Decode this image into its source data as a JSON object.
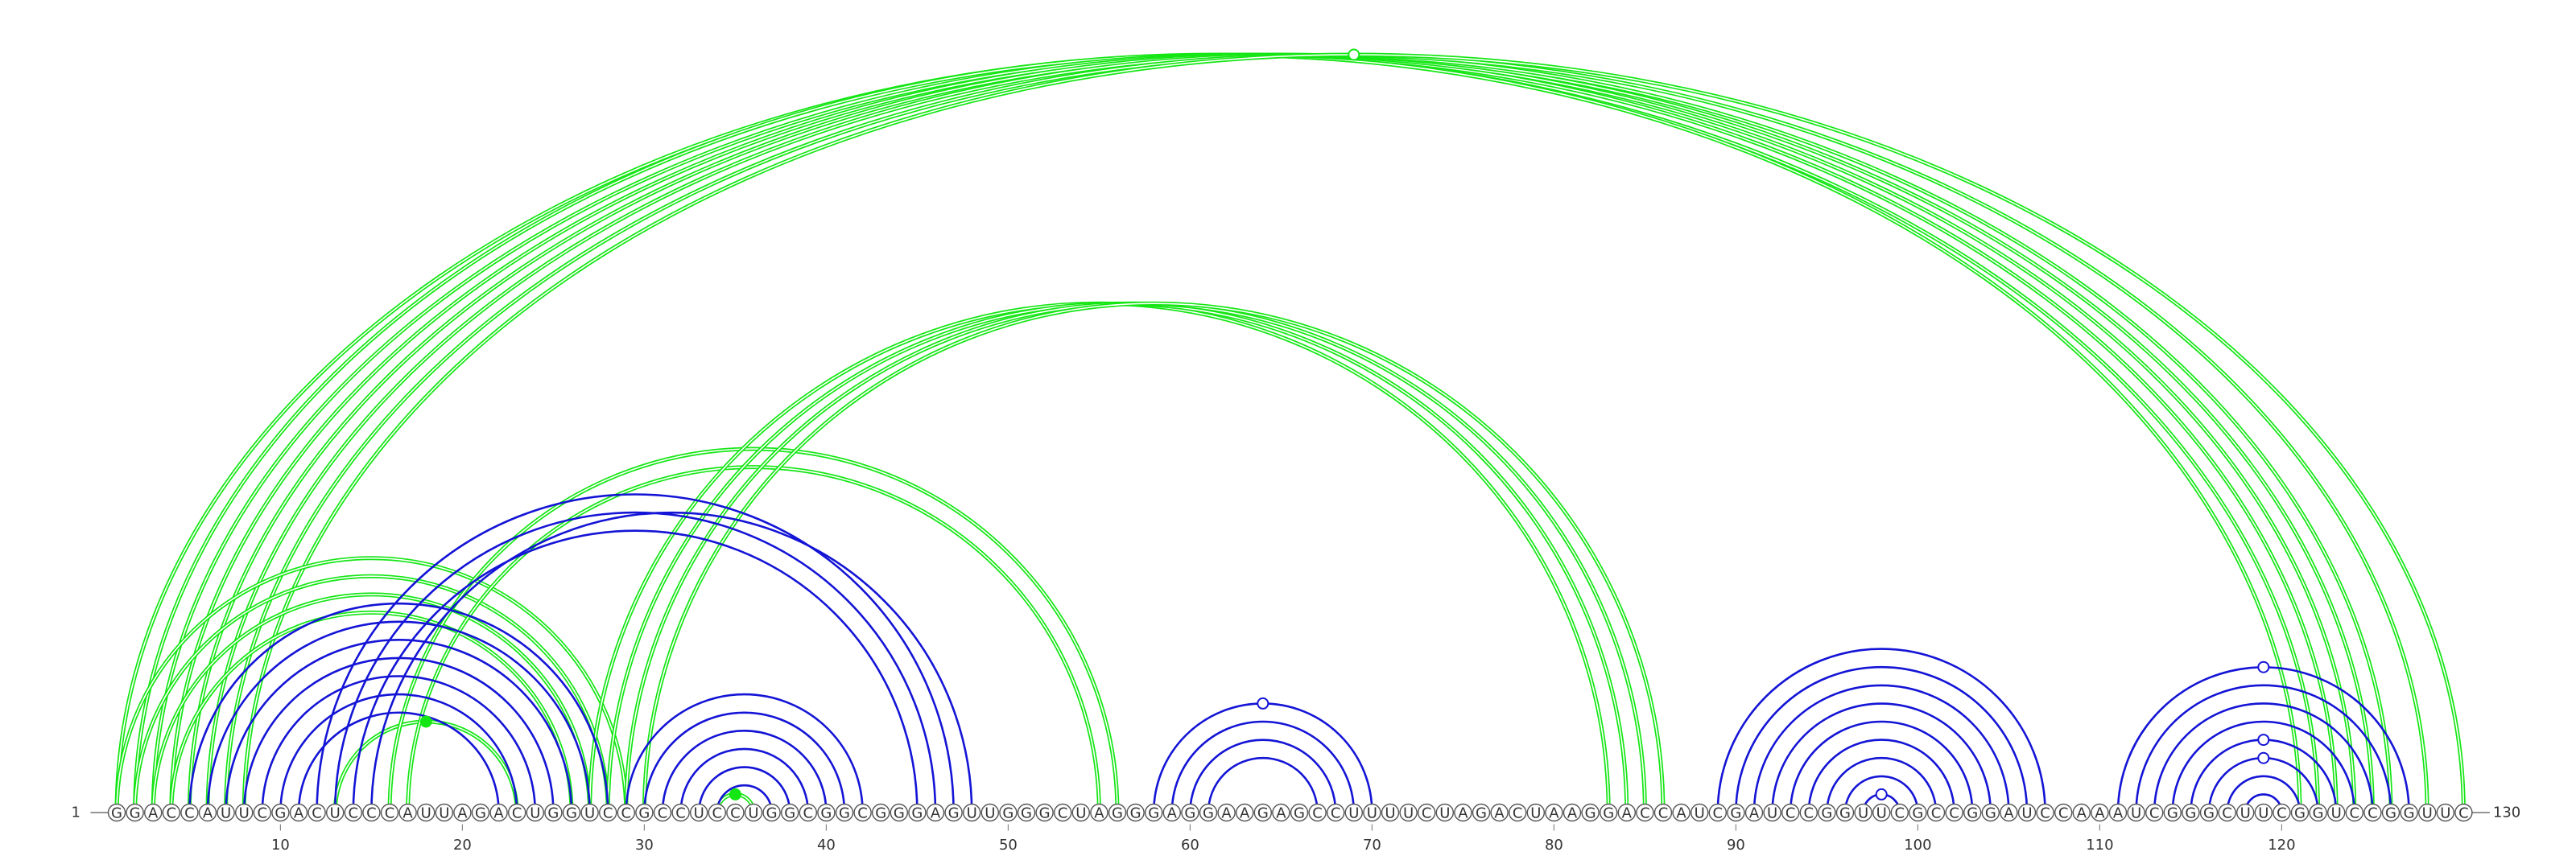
{
  "chart_data": {
    "type": "arc-diagram",
    "sequence": "GGACCAUUCGACUCCCAUUAGACUGGUCCGCCUCCUGGCGGCGGGAGUUGGGCUAGGGAGGAAGAGCCUUUUCUAGACUAAGGACCAUCGAUCCGGUUCGCCGGAUCCAAAUCGGGCUUCGGUCCGGUUC",
    "length": 130,
    "start_label": "1",
    "end_label": "130",
    "ticks": [
      10,
      20,
      30,
      40,
      50,
      60,
      70,
      80,
      90,
      100,
      110,
      120
    ],
    "colors": {
      "blue": "#1414d6",
      "green": "#14e614",
      "node": "#555555"
    },
    "blue_pairs": [
      [
        5,
        28
      ],
      [
        6,
        27
      ],
      [
        7,
        26
      ],
      [
        8,
        25
      ],
      [
        9,
        24
      ],
      [
        10,
        23
      ],
      [
        11,
        22
      ],
      [
        12,
        47
      ],
      [
        13,
        46
      ],
      [
        14,
        45
      ],
      [
        15,
        48
      ],
      [
        29,
        42
      ],
      [
        30,
        41
      ],
      [
        31,
        40
      ],
      [
        32,
        39
      ],
      [
        33,
        38
      ],
      [
        34,
        37
      ],
      [
        58,
        70
      ],
      [
        59,
        69
      ],
      [
        60,
        68
      ],
      [
        61,
        67
      ],
      [
        89,
        107
      ],
      [
        90,
        106
      ],
      [
        91,
        105
      ],
      [
        92,
        104
      ],
      [
        93,
        103
      ],
      [
        94,
        102
      ],
      [
        95,
        101
      ],
      [
        96,
        100
      ],
      [
        97,
        99
      ],
      [
        111,
        127
      ],
      [
        112,
        126
      ],
      [
        113,
        125
      ],
      [
        114,
        124
      ],
      [
        115,
        123
      ],
      [
        116,
        122
      ],
      [
        117,
        121
      ],
      [
        118,
        120
      ]
    ],
    "green_pairs": [
      [
        1,
        122
      ],
      [
        2,
        121
      ],
      [
        3,
        123
      ],
      [
        4,
        124
      ],
      [
        5,
        125
      ],
      [
        6,
        126
      ],
      [
        7,
        128
      ],
      [
        8,
        130
      ],
      [
        1,
        29
      ],
      [
        2,
        28
      ],
      [
        3,
        27
      ],
      [
        4,
        26
      ],
      [
        13,
        23
      ],
      [
        16,
        56
      ],
      [
        17,
        55
      ],
      [
        27,
        83
      ],
      [
        28,
        84
      ],
      [
        29,
        85
      ],
      [
        30,
        86
      ],
      [
        34,
        36
      ]
    ],
    "blue_markers": [
      {
        "a": 58,
        "b": 70,
        "marker": "hollow"
      },
      {
        "a": 97,
        "b": 99,
        "marker": "hollow"
      },
      {
        "a": 116,
        "b": 122,
        "marker": "hollow"
      },
      {
        "a": 115,
        "b": 123,
        "marker": "hollow"
      },
      {
        "a": 111,
        "b": 127,
        "marker": "hollow"
      }
    ],
    "green_markers": [
      {
        "a": 8,
        "b": 130,
        "marker": "hollow"
      },
      {
        "a": 34,
        "b": 36,
        "marker": "filled"
      },
      {
        "a": 13,
        "b": 23,
        "marker": "filled"
      }
    ]
  }
}
